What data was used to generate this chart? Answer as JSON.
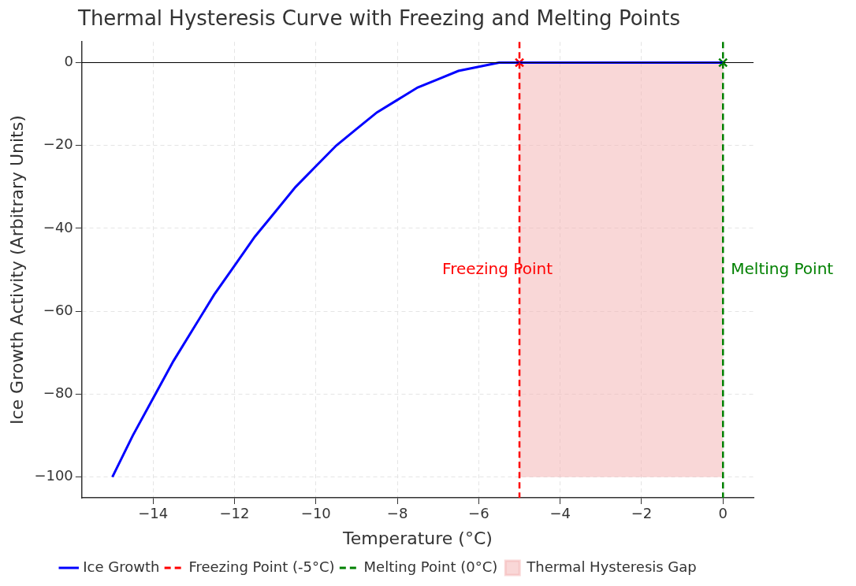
{
  "chart_data": {
    "type": "line",
    "title": "Thermal Hysteresis Curve with Freezing and Melting Points",
    "xlabel": "Temperature (°C)",
    "ylabel": "Ice Growth Activity (Arbitrary Units)",
    "xlim": [
      -15.75,
      0.75
    ],
    "ylim": [
      -105,
      5
    ],
    "xticks": [
      -14,
      -12,
      -10,
      -8,
      -6,
      -4,
      -2,
      0
    ],
    "yticks": [
      -100,
      -80,
      -60,
      -40,
      -20,
      0
    ],
    "grid": true,
    "legend": "bottom",
    "series": [
      {
        "name": "Ice Growth",
        "color": "#0000ff",
        "marker": "none",
        "x": [
          -15,
          -14.5,
          -14,
          -13.5,
          -13,
          -12.5,
          -12,
          -11.5,
          -11,
          -10.5,
          -10,
          -9.5,
          -9,
          -8.5,
          -8,
          -7.5,
          -7,
          -6.5,
          -6,
          -5.5,
          -5,
          -2.5,
          0
        ],
        "values": [
          -100,
          -90,
          -81,
          -72,
          -64,
          -56,
          -49,
          -42,
          -36,
          -30,
          -25,
          -20,
          -16,
          -12,
          -9,
          -6,
          -4,
          -2,
          -1,
          0,
          0,
          0,
          0
        ]
      },
      {
        "name": "Thermal Hysteresis Gap",
        "type": "area",
        "color": "#f4b6b6",
        "x": [
          -5,
          0
        ],
        "values": [
          -100,
          -100
        ]
      },
      {
        "type": "scatter",
        "color": "#ff0000",
        "marker": "cross",
        "x": [
          -5
        ],
        "values": [
          0
        ]
      },
      {
        "type": "scatter",
        "color": "#008000",
        "marker": "cross",
        "x": [
          0
        ],
        "values": [
          0
        ]
      }
    ],
    "ref_lines": [
      {
        "axis": "y",
        "value": 0,
        "color": "#000000",
        "line_style": "solid"
      },
      {
        "axis": "x",
        "value": -5,
        "label": "Freezing Point (-5°C)",
        "color": "#ff0000",
        "line_style": "dashed"
      },
      {
        "axis": "x",
        "value": 0,
        "label": "Melting Point (0°C)",
        "color": "#008000",
        "line_style": "dashed"
      }
    ],
    "annotations": [
      {
        "text": "Freezing Point",
        "x": -5,
        "y": -50
      },
      {
        "text": "Melting Point",
        "x": 0,
        "y": -50
      }
    ]
  }
}
